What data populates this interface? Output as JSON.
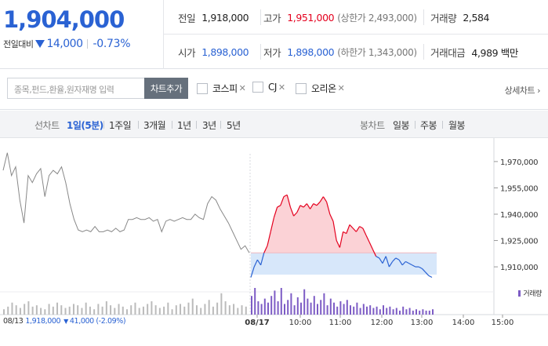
{
  "summary": {
    "price": "1,904,000",
    "change_label": "전일대비",
    "change_amount": "14,000",
    "change_percent": "-0.73%",
    "prev_close": {
      "label": "전일",
      "value": "1,918,000"
    },
    "high": {
      "label": "고가",
      "value": "1,951,000",
      "sub": "(상한가 2,493,000)"
    },
    "volume": {
      "label": "거래량",
      "value": "2,584"
    },
    "open": {
      "label": "시가",
      "value": "1,898,000"
    },
    "low": {
      "label": "저가",
      "value": "1,898,000",
      "sub": "(하한가 1,343,000)"
    },
    "amount": {
      "label": "거래대금",
      "value": "4,989 백만"
    }
  },
  "search": {
    "placeholder": "종목,펀드,환율,원자재명 입력",
    "add_button": "차트추가",
    "compare": [
      "코스피",
      "CJ",
      "오리온"
    ],
    "detail_link": "상세차트 ›"
  },
  "tabs": {
    "line_label": "선차트",
    "periods": [
      "1일(5분)",
      "1주일",
      "3개월",
      "1년",
      "3년",
      "5년"
    ],
    "active_period": "1일(5분)",
    "candle_label": "봉차트",
    "candles": [
      "일봉",
      "주봉",
      "월봉"
    ]
  },
  "chart_data": {
    "type": "line",
    "y_ticks": [
      "1,970,000",
      "1,955,000",
      "1,940,000",
      "1,925,000",
      "1,910,000"
    ],
    "ylim": [
      1902000,
      1978000
    ],
    "x_ticks": [
      "08/13",
      "08/17",
      "10:00",
      "11:00",
      "12:00",
      "13:00",
      "14:00",
      "15:00"
    ],
    "baseline": 1918000,
    "prev_day_series": [
      {
        "x": 0,
        "y": 1965000
      },
      {
        "x": 1,
        "y": 1975000
      },
      {
        "x": 2,
        "y": 1962000
      },
      {
        "x": 3,
        "y": 1967000
      },
      {
        "x": 4,
        "y": 1948000
      },
      {
        "x": 5,
        "y": 1935000
      },
      {
        "x": 6,
        "y": 1962000
      },
      {
        "x": 7,
        "y": 1958000
      },
      {
        "x": 8,
        "y": 1963000
      },
      {
        "x": 9,
        "y": 1966000
      },
      {
        "x": 10,
        "y": 1950000
      },
      {
        "x": 11,
        "y": 1962000
      },
      {
        "x": 12,
        "y": 1965000
      },
      {
        "x": 13,
        "y": 1963000
      },
      {
        "x": 14,
        "y": 1967000
      },
      {
        "x": 15,
        "y": 1958000
      },
      {
        "x": 16,
        "y": 1946000
      },
      {
        "x": 17,
        "y": 1937000
      },
      {
        "x": 18,
        "y": 1931000
      },
      {
        "x": 19,
        "y": 1930000
      },
      {
        "x": 20,
        "y": 1931000
      },
      {
        "x": 21,
        "y": 1930000
      },
      {
        "x": 22,
        "y": 1933000
      },
      {
        "x": 23,
        "y": 1930000
      },
      {
        "x": 24,
        "y": 1930000
      },
      {
        "x": 25,
        "y": 1931000
      },
      {
        "x": 26,
        "y": 1930000
      },
      {
        "x": 27,
        "y": 1932000
      },
      {
        "x": 28,
        "y": 1930000
      },
      {
        "x": 29,
        "y": 1931000
      },
      {
        "x": 30,
        "y": 1937000
      },
      {
        "x": 31,
        "y": 1937000
      },
      {
        "x": 32,
        "y": 1938000
      },
      {
        "x": 33,
        "y": 1937000
      },
      {
        "x": 34,
        "y": 1937000
      },
      {
        "x": 35,
        "y": 1938000
      },
      {
        "x": 36,
        "y": 1936000
      },
      {
        "x": 37,
        "y": 1937000
      },
      {
        "x": 38,
        "y": 1930000
      },
      {
        "x": 39,
        "y": 1936000
      },
      {
        "x": 40,
        "y": 1937000
      },
      {
        "x": 41,
        "y": 1936000
      },
      {
        "x": 42,
        "y": 1937000
      },
      {
        "x": 43,
        "y": 1938000
      },
      {
        "x": 44,
        "y": 1937000
      },
      {
        "x": 45,
        "y": 1937000
      },
      {
        "x": 46,
        "y": 1940000
      },
      {
        "x": 47,
        "y": 1938000
      },
      {
        "x": 48,
        "y": 1937000
      },
      {
        "x": 49,
        "y": 1946000
      },
      {
        "x": 50,
        "y": 1950000
      },
      {
        "x": 51,
        "y": 1948000
      },
      {
        "x": 52,
        "y": 1943000
      },
      {
        "x": 53,
        "y": 1939000
      },
      {
        "x": 54,
        "y": 1935000
      },
      {
        "x": 55,
        "y": 1930000
      },
      {
        "x": 56,
        "y": 1925000
      },
      {
        "x": 57,
        "y": 1920000
      },
      {
        "x": 58,
        "y": 1922000
      },
      {
        "x": 59,
        "y": 1918000
      }
    ],
    "today_series": [
      {
        "x": 0,
        "y": 1904000
      },
      {
        "x": 1,
        "y": 1910000
      },
      {
        "x": 2,
        "y": 1914000
      },
      {
        "x": 3,
        "y": 1911000
      },
      {
        "x": 4,
        "y": 1918000
      },
      {
        "x": 5,
        "y": 1922000
      },
      {
        "x": 6,
        "y": 1930000
      },
      {
        "x": 7,
        "y": 1938000
      },
      {
        "x": 8,
        "y": 1944000
      },
      {
        "x": 9,
        "y": 1945000
      },
      {
        "x": 10,
        "y": 1950000
      },
      {
        "x": 11,
        "y": 1951000
      },
      {
        "x": 12,
        "y": 1944000
      },
      {
        "x": 13,
        "y": 1939000
      },
      {
        "x": 14,
        "y": 1941000
      },
      {
        "x": 15,
        "y": 1945000
      },
      {
        "x": 16,
        "y": 1944000
      },
      {
        "x": 17,
        "y": 1946000
      },
      {
        "x": 18,
        "y": 1943000
      },
      {
        "x": 19,
        "y": 1946000
      },
      {
        "x": 20,
        "y": 1945000
      },
      {
        "x": 21,
        "y": 1947000
      },
      {
        "x": 22,
        "y": 1950000
      },
      {
        "x": 23,
        "y": 1947000
      },
      {
        "x": 24,
        "y": 1940000
      },
      {
        "x": 25,
        "y": 1936000
      },
      {
        "x": 26,
        "y": 1925000
      },
      {
        "x": 27,
        "y": 1921000
      },
      {
        "x": 28,
        "y": 1930000
      },
      {
        "x": 29,
        "y": 1929000
      },
      {
        "x": 30,
        "y": 1934000
      },
      {
        "x": 31,
        "y": 1932000
      },
      {
        "x": 32,
        "y": 1930000
      },
      {
        "x": 33,
        "y": 1933000
      },
      {
        "x": 34,
        "y": 1932000
      },
      {
        "x": 35,
        "y": 1928000
      },
      {
        "x": 36,
        "y": 1924000
      },
      {
        "x": 37,
        "y": 1920000
      },
      {
        "x": 38,
        "y": 1916000
      },
      {
        "x": 39,
        "y": 1915000
      },
      {
        "x": 40,
        "y": 1912000
      },
      {
        "x": 41,
        "y": 1916000
      },
      {
        "x": 42,
        "y": 1910000
      },
      {
        "x": 43,
        "y": 1913000
      },
      {
        "x": 44,
        "y": 1915000
      },
      {
        "x": 45,
        "y": 1914000
      },
      {
        "x": 46,
        "y": 1911000
      },
      {
        "x": 47,
        "y": 1913000
      },
      {
        "x": 48,
        "y": 1912000
      },
      {
        "x": 49,
        "y": 1911000
      },
      {
        "x": 50,
        "y": 1910000
      },
      {
        "x": 51,
        "y": 1910000
      },
      {
        "x": 52,
        "y": 1909000
      },
      {
        "x": 53,
        "y": 1907000
      },
      {
        "x": 54,
        "y": 1905000
      },
      {
        "x": 55,
        "y": 1904000
      }
    ],
    "prev_volume": [
      4,
      6,
      9,
      7,
      5,
      8,
      10,
      6,
      7,
      5,
      4,
      8,
      6,
      9,
      7,
      5,
      6,
      8,
      7,
      5,
      9,
      6,
      4,
      8,
      6,
      10,
      7,
      5,
      8,
      6,
      4,
      7,
      9,
      5,
      6,
      8,
      10,
      7,
      5,
      6,
      9,
      4,
      7,
      8,
      6,
      9,
      12,
      7,
      5,
      8,
      11,
      6,
      9,
      16,
      10,
      7,
      8,
      5,
      7,
      6
    ],
    "today_volume": [
      14,
      20,
      10,
      8,
      12,
      9,
      14,
      18,
      10,
      22,
      8,
      11,
      16,
      7,
      13,
      9,
      19,
      12,
      9,
      14,
      8,
      11,
      16,
      7,
      12,
      9,
      6,
      10,
      8,
      11,
      7,
      6,
      9,
      5,
      8,
      6,
      7,
      5,
      6,
      4,
      7,
      5,
      6,
      4,
      5,
      3,
      6,
      4,
      5,
      3,
      4,
      3,
      4,
      3,
      3,
      4
    ],
    "prev_info": {
      "date": "08/13",
      "price": "1,918,000",
      "change": "41,000 (-2.09%)"
    },
    "volume_legend": "거래량",
    "colors": {
      "up": "#e4001e",
      "down": "#2a62d3",
      "prev_line": "#888888",
      "up_fill": "#fbd2d6",
      "down_fill": "#d3e4fa",
      "volume_prev": "#bbbbbb",
      "volume_today": "#7d5cc5"
    }
  }
}
